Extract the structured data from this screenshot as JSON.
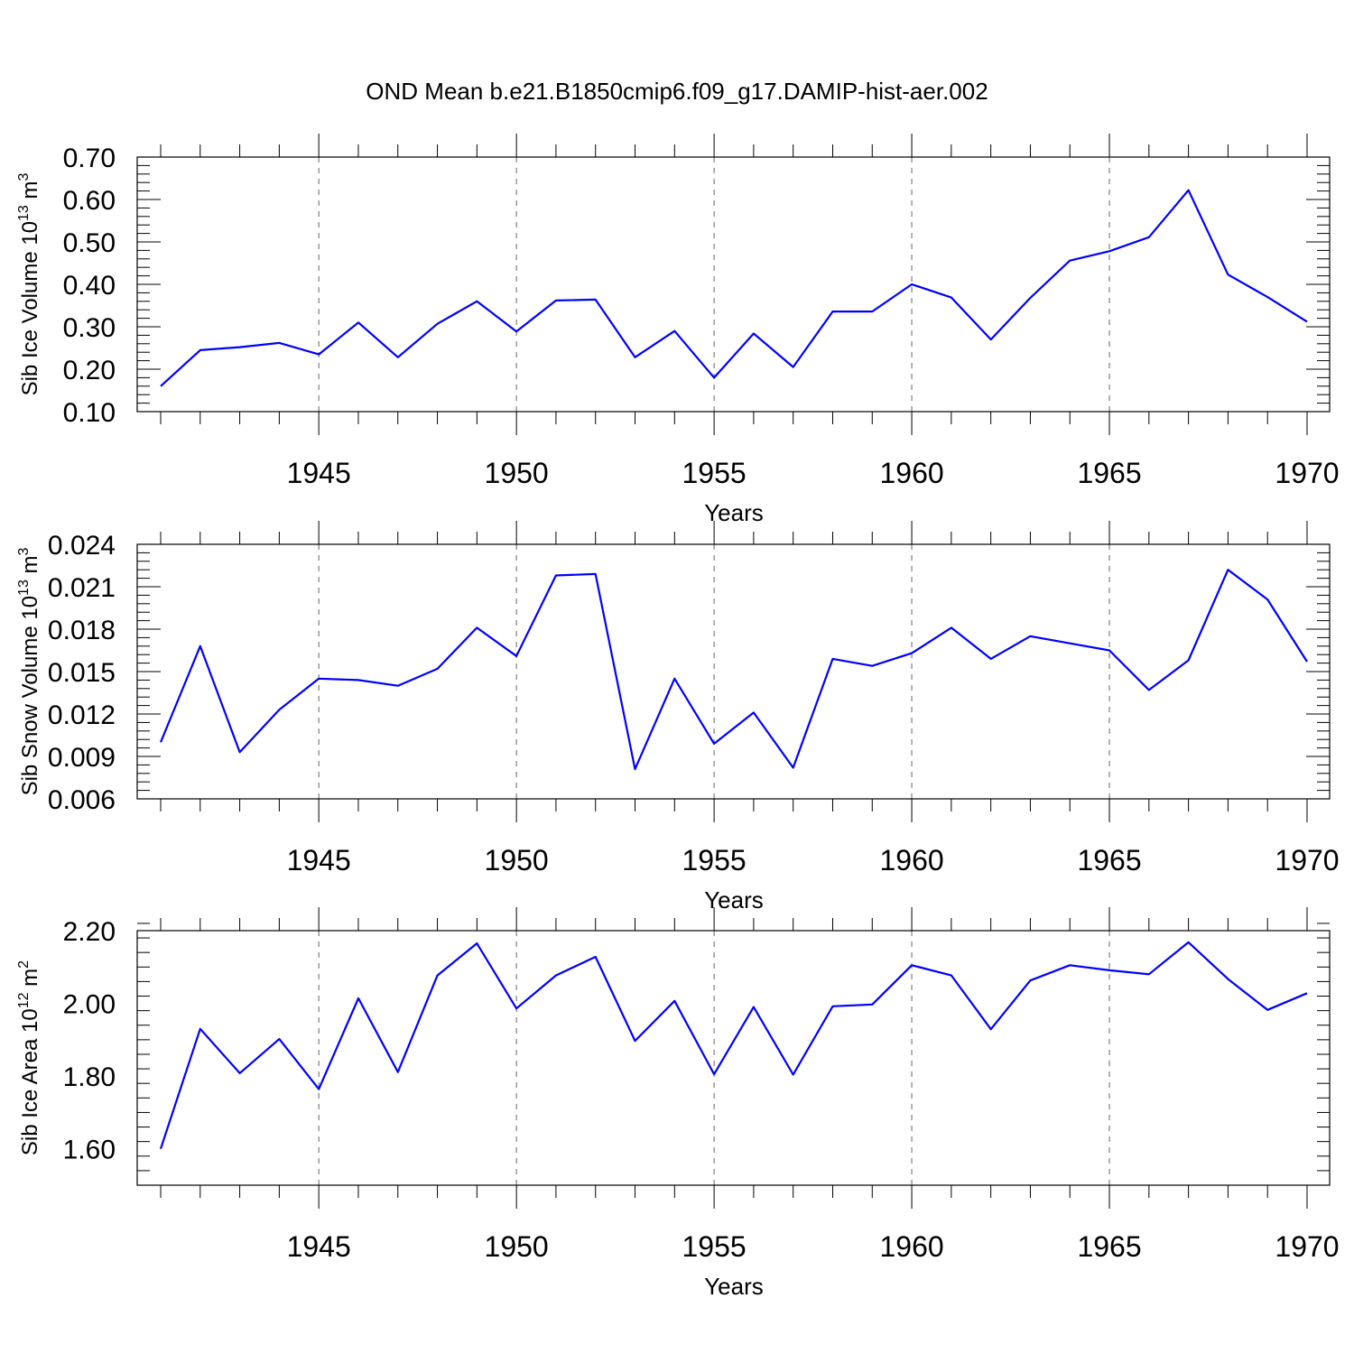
{
  "chart_data": {
    "type": "line",
    "title": "OND Mean b.e21.B1850cmip6.f09_g17.DAMIP-hist-aer.002",
    "x": [
      1941,
      1942,
      1943,
      1944,
      1945,
      1946,
      1947,
      1948,
      1949,
      1950,
      1951,
      1952,
      1953,
      1954,
      1955,
      1956,
      1957,
      1958,
      1959,
      1960,
      1961,
      1962,
      1963,
      1964,
      1965,
      1966,
      1967,
      1968,
      1969,
      1970
    ],
    "xlim": [
      1941,
      1970
    ],
    "x_major_ticks": [
      "1945",
      "1950",
      "1955",
      "1960",
      "1965",
      "1970"
    ],
    "panels": [
      {
        "id": "ice-volume",
        "ylabel": "Sib Ice Volume 10",
        "ylabel_exp": "13",
        "ylabel_unit": " m",
        "ylabel_unit_exp": "3",
        "xlabel": "Years",
        "ylim": [
          0.1,
          0.7
        ],
        "yticks": [
          "0.10",
          "0.20",
          "0.30",
          "0.40",
          "0.50",
          "0.60",
          "0.70"
        ],
        "series": [
          {
            "name": "Sib Ice Volume",
            "color": "#0000ff",
            "values": [
              0.16,
              0.245,
              0.252,
              0.262,
              0.235,
              0.31,
              0.228,
              0.307,
              0.36,
              0.289,
              0.362,
              0.364,
              0.228,
              0.29,
              0.18,
              0.284,
              0.205,
              0.336,
              0.336,
              0.4,
              0.369,
              0.27,
              0.368,
              0.456,
              0.478,
              0.511,
              0.622,
              0.423,
              0.37,
              0.312
            ]
          }
        ]
      },
      {
        "id": "snow-volume",
        "ylabel": "Sib Snow Volume 10",
        "ylabel_exp": "13",
        "ylabel_unit": " m",
        "ylabel_unit_exp": "3",
        "xlabel": "Years",
        "ylim": [
          0.006,
          0.024
        ],
        "yticks": [
          "0.006",
          "0.009",
          "0.012",
          "0.015",
          "0.018",
          "0.021",
          "0.024"
        ],
        "series": [
          {
            "name": "Sib Snow Volume",
            "color": "#0000ff",
            "values": [
              0.01,
              0.0168,
              0.0093,
              0.0123,
              0.0145,
              0.0144,
              0.014,
              0.0152,
              0.0181,
              0.0161,
              0.0218,
              0.0219,
              0.0081,
              0.0145,
              0.0099,
              0.0121,
              0.0082,
              0.0159,
              0.0154,
              0.0163,
              0.0181,
              0.0159,
              0.0175,
              0.017,
              0.0165,
              0.0137,
              0.0158,
              0.0222,
              0.0201,
              0.0157
            ]
          }
        ]
      },
      {
        "id": "ice-area",
        "ylabel": "Sib Ice Area 10",
        "ylabel_exp": "12",
        "ylabel_unit": " m",
        "ylabel_unit_exp": "2",
        "xlabel": "Years",
        "ylim": [
          1.5,
          2.2
        ],
        "yticks": [
          "1.60",
          "1.80",
          "2.00",
          "2.20"
        ],
        "series": [
          {
            "name": "Sib Ice Area",
            "color": "#0000ff",
            "values": [
              1.6,
              1.93,
              1.808,
              1.902,
              1.764,
              2.014,
              1.811,
              2.077,
              2.165,
              1.986,
              2.077,
              2.128,
              1.897,
              2.007,
              1.805,
              1.99,
              1.804,
              1.992,
              1.997,
              2.105,
              2.077,
              1.929,
              2.063,
              2.105,
              2.091,
              2.08,
              2.168,
              2.067,
              1.982,
              2.028
            ]
          }
        ]
      }
    ]
  }
}
